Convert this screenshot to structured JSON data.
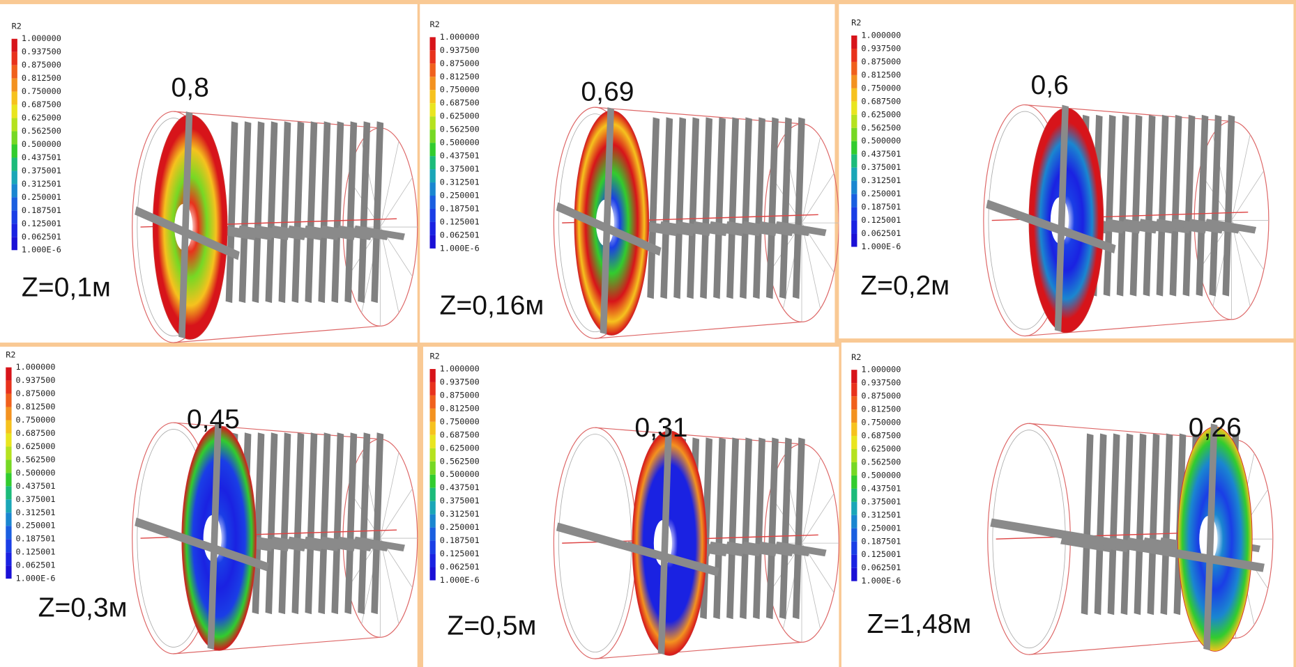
{
  "legend": {
    "title": "R2",
    "labels": [
      "1.000000",
      "0.937500",
      "0.875000",
      "0.812500",
      "0.750000",
      "0.687500",
      "0.625000",
      "0.562500",
      "0.500000",
      "0.437501",
      "0.375001",
      "0.312501",
      "0.250001",
      "0.187501",
      "0.125001",
      "0.062501",
      "1.000E-6"
    ]
  },
  "panels": [
    {
      "value": "0,8",
      "z": "Z=0,1м"
    },
    {
      "value": "0,69",
      "z": "Z=0,16м"
    },
    {
      "value": "0,6",
      "z": "Z=0,2м"
    },
    {
      "value": "0,45",
      "z": "Z=0,3м"
    },
    {
      "value": "0,31",
      "z": "Z=0,5м"
    },
    {
      "value": "0,26",
      "z": "Z=1,48м"
    }
  ]
}
